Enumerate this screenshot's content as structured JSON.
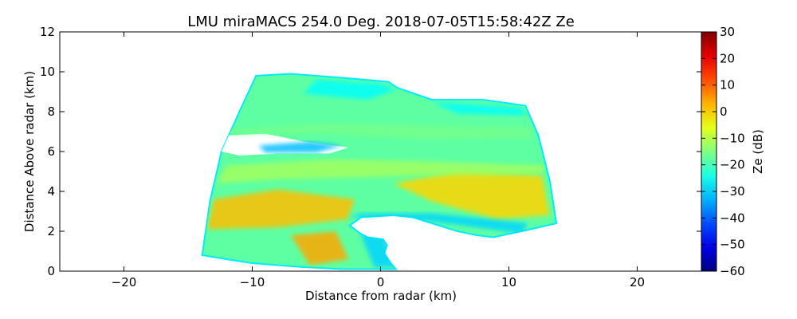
{
  "chart_data": {
    "type": "heatmap",
    "title": "LMU miraMACS 254.0 Deg. 2018-07-05T15:58:42Z  Ze",
    "xlabel": "Distance from radar (km)",
    "ylabel": "Distance Above radar  (km)",
    "xlim": [
      -25,
      25
    ],
    "ylim": [
      0,
      12
    ],
    "xticks": [
      -20,
      -10,
      0,
      10,
      20
    ],
    "yticks": [
      0,
      2,
      4,
      6,
      8,
      10,
      12
    ],
    "grid": false,
    "colorbar": {
      "label": "Ze (dB)",
      "range": [
        -60,
        30
      ],
      "ticks": [
        30,
        20,
        10,
        0,
        -10,
        -20,
        -30,
        -40,
        -50,
        -60
      ],
      "colormap": "jet"
    },
    "echo_outline": [
      [
        -13.9,
        0.8
      ],
      [
        -13.3,
        3.5
      ],
      [
        -12.4,
        6.0
      ],
      [
        -11.0,
        8.0
      ],
      [
        -9.7,
        9.8
      ],
      [
        -7.0,
        9.9
      ],
      [
        -3.0,
        9.7
      ],
      [
        0.6,
        9.5
      ],
      [
        1.3,
        9.2
      ],
      [
        4.0,
        8.6
      ],
      [
        8.0,
        8.6
      ],
      [
        11.3,
        8.3
      ],
      [
        12.3,
        6.8
      ],
      [
        13.2,
        4.5
      ],
      [
        13.7,
        2.4
      ],
      [
        11.0,
        2.0
      ],
      [
        9.5,
        1.8
      ],
      [
        8.8,
        1.7
      ],
      [
        7.5,
        1.8
      ],
      [
        6.0,
        2.0
      ],
      [
        4.5,
        2.3
      ],
      [
        2.5,
        2.7
      ],
      [
        1.0,
        2.8
      ],
      [
        -1.5,
        2.7
      ],
      [
        -2.4,
        2.3
      ],
      [
        -1.6,
        1.9
      ],
      [
        -1.0,
        1.7
      ],
      [
        0.2,
        1.6
      ],
      [
        0.5,
        1.3
      ],
      [
        0.3,
        0.9
      ],
      [
        0.8,
        0.4
      ],
      [
        1.2,
        0.1
      ],
      [
        -3.0,
        0.1
      ],
      [
        -6.0,
        0.2
      ],
      [
        -10.0,
        0.4
      ],
      [
        -12.0,
        0.6
      ]
    ],
    "echo_features": [
      {
        "kind": "clear",
        "points": [
          [
            -12.2,
            6.8
          ],
          [
            -9.0,
            6.9
          ],
          [
            -6.0,
            6.5
          ],
          [
            -2.5,
            6.2
          ],
          [
            -4.0,
            5.9
          ],
          [
            -8.0,
            5.9
          ],
          [
            -11.0,
            5.8
          ],
          [
            -12.4,
            6.0
          ]
        ],
        "ze": null
      },
      {
        "kind": "band",
        "points": [
          [
            -9.5,
            6.3
          ],
          [
            -5.5,
            6.5
          ],
          [
            -3.0,
            6.3
          ],
          [
            -5.0,
            5.95
          ],
          [
            -9.0,
            5.95
          ]
        ],
        "ze": -32
      },
      {
        "kind": "band",
        "points": [
          [
            -13.0,
            3.6
          ],
          [
            -8.0,
            4.1
          ],
          [
            -2.0,
            3.6
          ],
          [
            -2.6,
            2.6
          ],
          [
            -8.0,
            2.2
          ],
          [
            -13.5,
            2.1
          ]
        ],
        "ze": 2
      },
      {
        "kind": "band",
        "points": [
          [
            -7.0,
            1.8
          ],
          [
            -3.5,
            2.0
          ],
          [
            -2.5,
            0.6
          ],
          [
            -5.5,
            0.3
          ]
        ],
        "ze": 4
      },
      {
        "kind": "band",
        "points": [
          [
            1.0,
            4.4
          ],
          [
            6.0,
            5.0
          ],
          [
            12.6,
            4.8
          ],
          [
            13.2,
            2.8
          ],
          [
            9.0,
            2.6
          ],
          [
            4.0,
            3.5
          ]
        ],
        "ze": 0
      },
      {
        "kind": "band",
        "points": [
          [
            -5.0,
            9.6
          ],
          [
            0.0,
            9.4
          ],
          [
            1.2,
            9.1
          ],
          [
            -1.0,
            8.6
          ],
          [
            -6.0,
            8.9
          ]
        ],
        "ze": -26
      },
      {
        "kind": "band",
        "points": [
          [
            4.0,
            8.5
          ],
          [
            11.0,
            8.2
          ],
          [
            11.4,
            7.8
          ],
          [
            6.0,
            7.9
          ]
        ],
        "ze": -26
      },
      {
        "kind": "band",
        "points": [
          [
            -12.0,
            5.3
          ],
          [
            -4.0,
            5.6
          ],
          [
            4.0,
            5.5
          ],
          [
            12.8,
            5.3
          ],
          [
            12.6,
            4.9
          ],
          [
            4.0,
            4.8
          ],
          [
            -8.0,
            4.6
          ],
          [
            -12.8,
            4.4
          ]
        ],
        "ze": -12
      },
      {
        "kind": "band",
        "points": [
          [
            -1.6,
            1.9
          ],
          [
            0.3,
            1.7
          ],
          [
            0.6,
            0.9
          ],
          [
            1.1,
            0.2
          ],
          [
            -0.5,
            0.2
          ],
          [
            -1.0,
            1.0
          ]
        ],
        "ze": -30
      },
      {
        "kind": "band",
        "points": [
          [
            -2.5,
            2.7
          ],
          [
            4.0,
            2.5
          ],
          [
            11.0,
            1.9
          ],
          [
            11.5,
            2.4
          ],
          [
            4.0,
            2.9
          ],
          [
            -1.5,
            2.9
          ]
        ],
        "ze": -30
      },
      {
        "kind": "band",
        "points": [
          [
            -12.0,
            7.1
          ],
          [
            -4.0,
            7.4
          ],
          [
            4.0,
            7.3
          ],
          [
            11.6,
            7.2
          ],
          [
            11.8,
            6.7
          ],
          [
            4.0,
            6.6
          ],
          [
            -4.0,
            6.9
          ],
          [
            -12.2,
            6.9
          ]
        ],
        "ze": -16
      }
    ]
  }
}
